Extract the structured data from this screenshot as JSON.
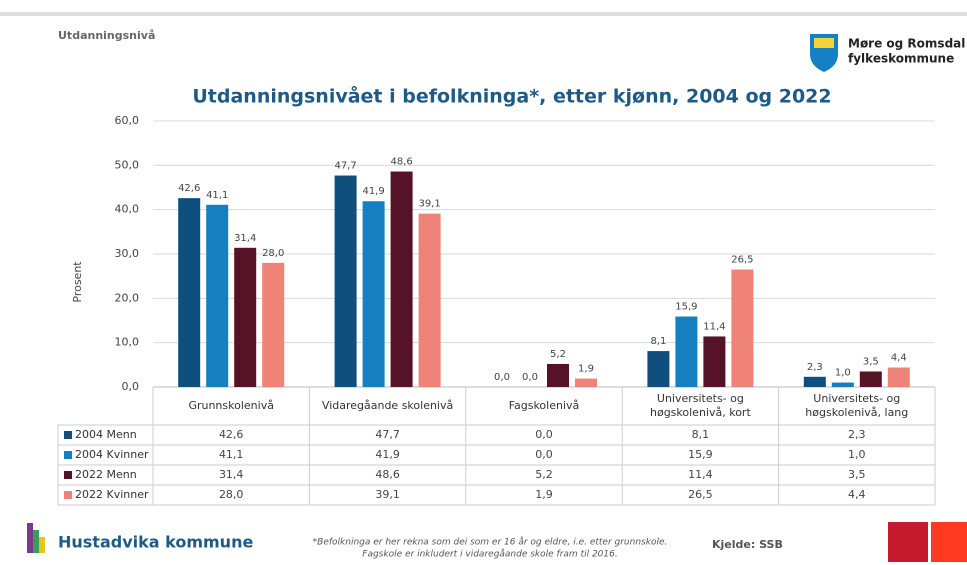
{
  "page_label": "Utdanningsnivå",
  "logo_text": [
    "Møre og Romsdal",
    "fylkeskommune"
  ],
  "footer_name": "Hustadvika kommune",
  "footnote": [
    "*Befolkninga er her rekna som dei som er 16 år og eldre, i.e. etter grunnskole.",
    "Fagskole er inkludert i vidaregåande skole fram til 2016."
  ],
  "source": "Kjelde: SSB",
  "chart_data": {
    "type": "bar",
    "title": "Utdanningsnivået i befolkninga*, etter kjønn, 2004 og 2022",
    "y_label": "Prosent",
    "categories": [
      "Grunnskolenivå",
      "Vidaregåande skolenivå",
      "Fagskolenivå",
      "Universitets- og høgskolenivå, kort",
      "Universitets- og høgskolenivå, lang"
    ],
    "series": [
      {
        "name": "2004 Menn",
        "color": "#0e4f7d",
        "values": [
          42.6,
          47.7,
          0.0,
          8.1,
          2.3
        ],
        "value_labels": [
          "42,6",
          "47,7",
          "0,0",
          "8,1",
          "2,3"
        ]
      },
      {
        "name": "2004 Kvinner",
        "color": "#1580c0",
        "values": [
          41.1,
          41.9,
          0.0,
          15.9,
          1.0
        ],
        "value_labels": [
          "41,1",
          "41,9",
          "0,0",
          "15,9",
          "1,0"
        ]
      },
      {
        "name": "2022 Menn",
        "color": "#561227",
        "values": [
          31.4,
          48.6,
          5.2,
          11.4,
          3.5
        ],
        "value_labels": [
          "31,4",
          "48,6",
          "5,2",
          "11,4",
          "3,5"
        ]
      },
      {
        "name": "2022 Kvinner",
        "color": "#ef8279",
        "values": [
          28.0,
          39.1,
          1.9,
          26.5,
          4.4
        ],
        "value_labels": [
          "28,0",
          "39,1",
          "1,9",
          "26,5",
          "4,4"
        ]
      }
    ],
    "ylim": [
      0,
      60
    ],
    "yticks": [
      {
        "value": 0,
        "label": "0,0"
      },
      {
        "value": 10,
        "label": "10,0"
      },
      {
        "value": 20,
        "label": "20,0"
      },
      {
        "value": 30,
        "label": "30,0"
      },
      {
        "value": 40,
        "label": "40,0"
      },
      {
        "value": 50,
        "label": "50,0"
      },
      {
        "value": 60,
        "label": "60,0"
      }
    ],
    "grid": true
  }
}
